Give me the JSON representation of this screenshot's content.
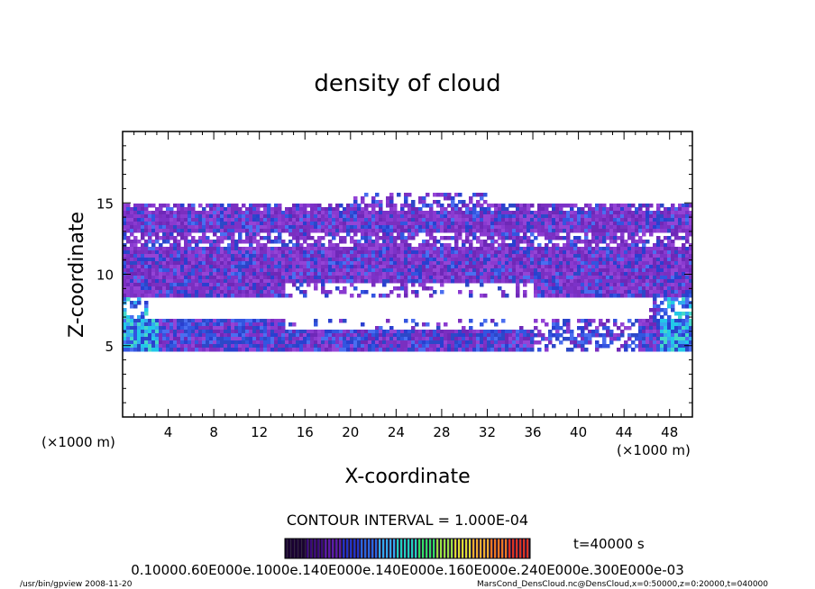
{
  "chart_data": {
    "type": "heatmap",
    "title": "density of cloud",
    "xlabel": "X-coordinate",
    "ylabel": "Z-coordinate",
    "x_unit": "(×1000 m)",
    "z_unit": "(×1000 m)",
    "xlim": [
      0,
      50
    ],
    "ylim": [
      0,
      20
    ],
    "x_ticks": [
      4,
      8,
      12,
      16,
      20,
      24,
      28,
      32,
      36,
      40,
      44,
      48
    ],
    "y_ticks": [
      5,
      10,
      15
    ],
    "contour_interval": "CONTOUR INTERVAL = 1.000E-04",
    "time": "t=40000 s",
    "colorbar_labels": "0.10000.60E000e.1000e.140E000e.140E000e.160E000e.240E000e.300E000e-03",
    "colorbar_colors": [
      "#1a0033",
      "#3a0a7a",
      "#5a1aa8",
      "#2233c8",
      "#2a66e0",
      "#33aaf0",
      "#22d0c0",
      "#33dd66",
      "#99e044",
      "#dddd33",
      "#f0b030",
      "#ee7722",
      "#dd3322"
    ],
    "footer_left": "/usr/bin/gpview   2008-11-20",
    "footer_right": "MarsCond_DensCloud.nc@DensCloud,x=0:50000,z=0:20000,t=040000",
    "cloud_layers": [
      {
        "z_bottom": 4.8,
        "z_top": 7.2,
        "x_start": 0,
        "x_end": 50,
        "value": 0.0002
      },
      {
        "z_bottom": 8.5,
        "z_top": 15.0,
        "x_start": 0,
        "x_end": 50,
        "value": 0.0001
      }
    ]
  }
}
